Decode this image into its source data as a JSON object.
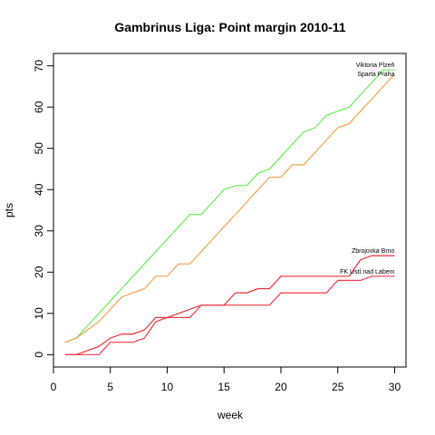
{
  "chart_data": {
    "type": "line",
    "title": "Gambrinus Liga: Point margin 2010-11",
    "xlabel": "week",
    "ylabel": "pts",
    "xlim": [
      0,
      31
    ],
    "ylim": [
      -3,
      73
    ],
    "xticks": [
      0,
      5,
      10,
      15,
      20,
      25,
      30
    ],
    "yticks": [
      0,
      10,
      20,
      30,
      40,
      50,
      60,
      70
    ],
    "grid": false,
    "x": [
      1,
      2,
      3,
      4,
      5,
      6,
      7,
      8,
      9,
      10,
      11,
      12,
      13,
      14,
      15,
      16,
      17,
      18,
      19,
      20,
      21,
      22,
      23,
      24,
      25,
      26,
      27,
      28,
      29,
      30
    ],
    "series": [
      {
        "name": "Viktoria Plzeň",
        "color": "#66ee55",
        "values": [
          3,
          4,
          7,
          10,
          13,
          16,
          19,
          22,
          25,
          28,
          31,
          34,
          34,
          37,
          40,
          41,
          41,
          44,
          45,
          48,
          51,
          54,
          55,
          58,
          59,
          60,
          63,
          66,
          69,
          69
        ]
      },
      {
        "name": "Sparta Praha",
        "color": "#f5a050",
        "values": [
          3,
          4,
          6,
          8,
          11,
          14,
          15,
          16,
          19,
          19,
          22,
          22,
          25,
          28,
          31,
          34,
          37,
          40,
          43,
          43,
          46,
          46,
          49,
          52,
          55,
          56,
          59,
          62,
          65,
          68
        ]
      },
      {
        "name": "Zbrojovka Brno",
        "color": "#e8303a",
        "values": [
          0,
          0,
          1,
          2,
          4,
          5,
          5,
          6,
          9,
          9,
          10,
          11,
          12,
          12,
          12,
          15,
          15,
          16,
          16,
          19,
          19,
          19,
          19,
          19,
          19,
          19,
          23,
          24,
          24,
          24
        ]
      },
      {
        "name": "FK Ústí nad Labem",
        "color": "#f03a4a",
        "values": [
          0,
          0,
          0,
          0,
          3,
          3,
          3,
          4,
          8,
          9,
          9,
          9,
          12,
          12,
          12,
          12,
          12,
          12,
          12,
          15,
          15,
          15,
          15,
          15,
          18,
          18,
          18,
          19,
          19,
          19
        ]
      }
    ]
  }
}
